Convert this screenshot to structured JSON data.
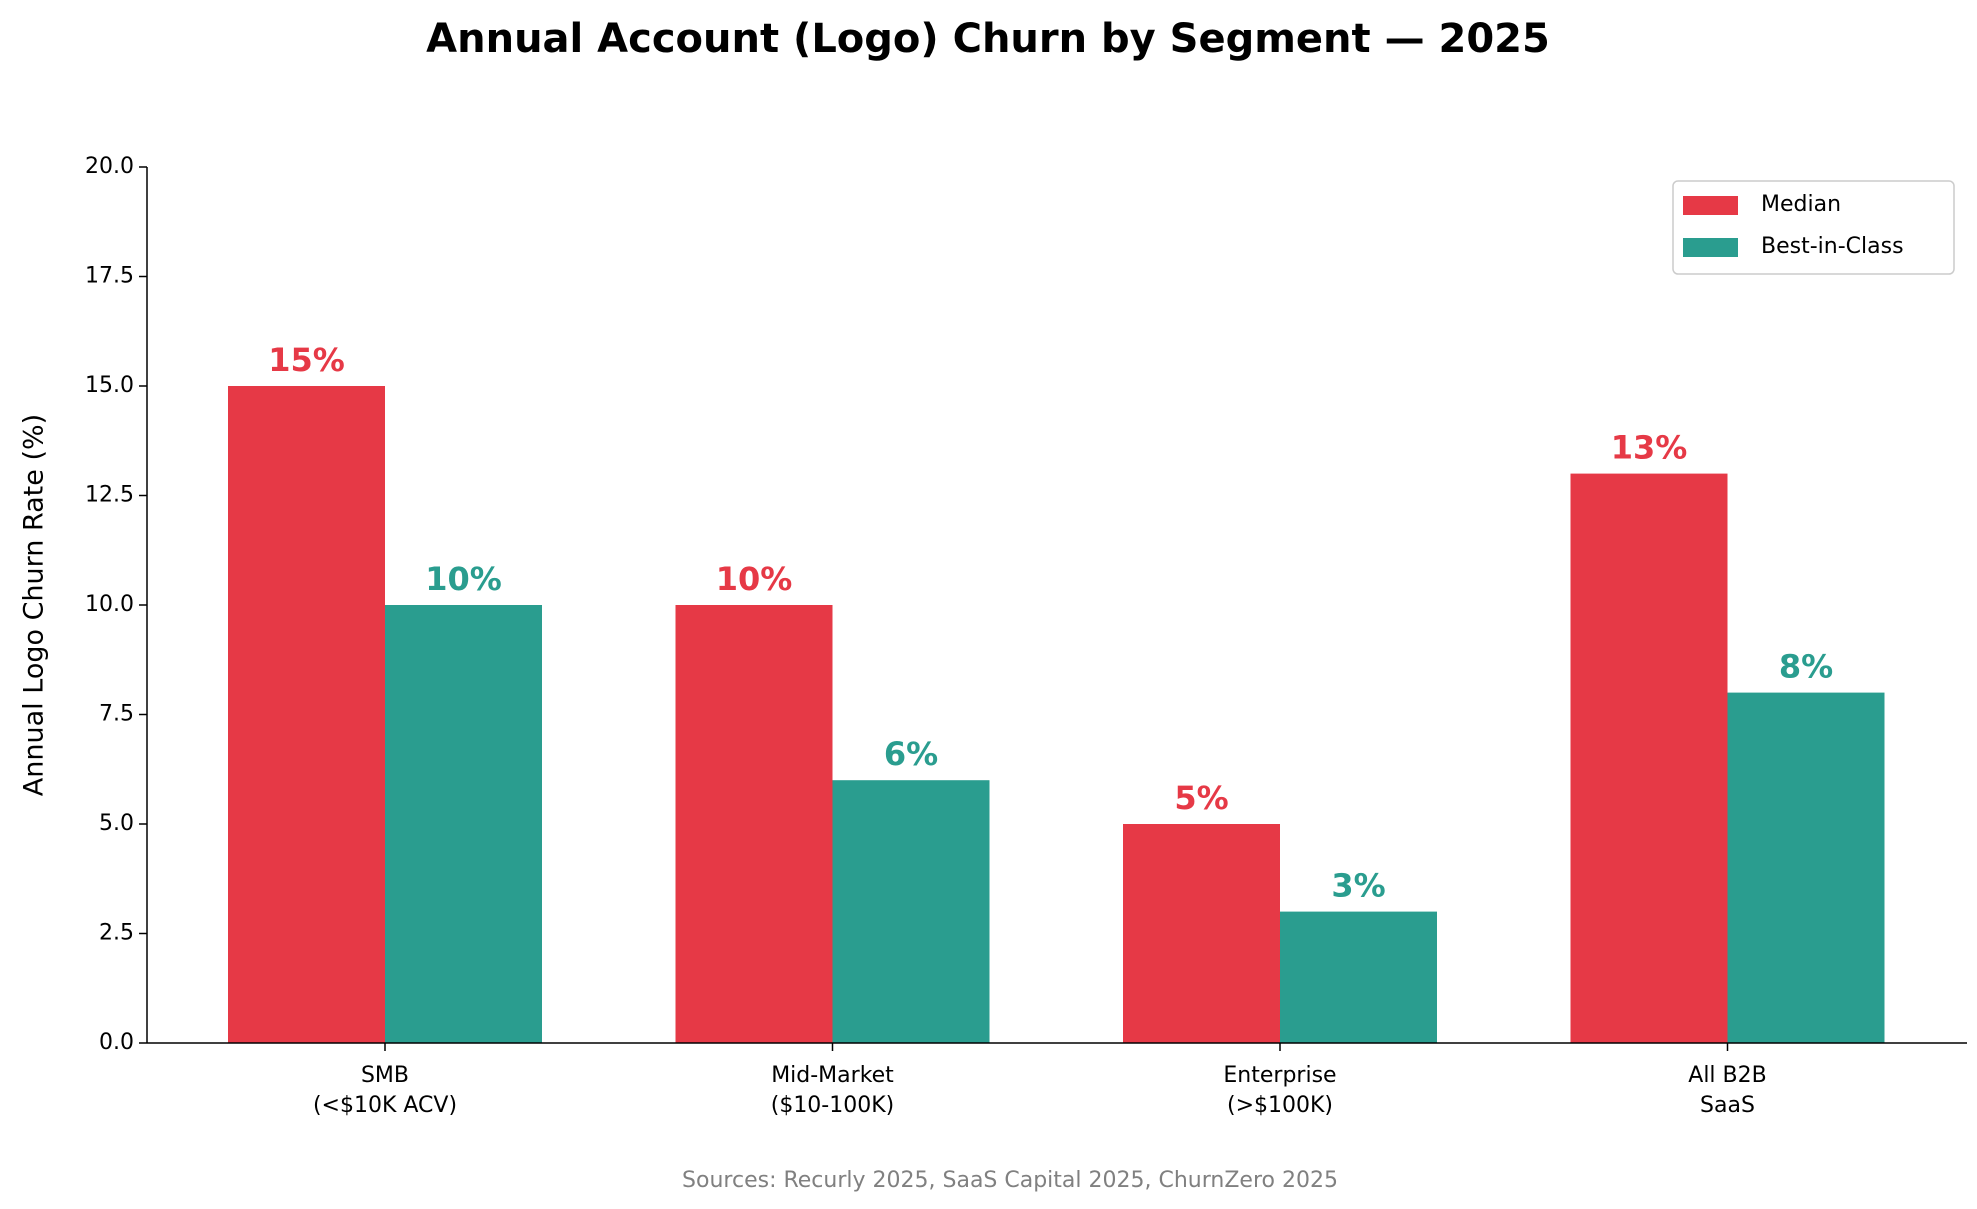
{
  "chart_data": {
    "type": "bar",
    "title": "Annual Account (Logo) Churn by Segment — 2025",
    "ylabel": "Annual Logo Churn Rate (%)",
    "footnote": "Sources: Recurly 2025, SaaS Capital 2025, ChurnZero 2025",
    "categories": [
      [
        "SMB",
        "(<$10K ACV)"
      ],
      [
        "Mid-Market",
        "($10-100K)"
      ],
      [
        "Enterprise",
        "(>$100K)"
      ],
      [
        "All B2B",
        "SaaS"
      ]
    ],
    "series": [
      {
        "name": "Median",
        "color": "#e63946",
        "values": [
          15,
          10,
          5,
          13
        ],
        "value_labels": [
          "15%",
          "10%",
          "5%",
          "13%"
        ]
      },
      {
        "name": "Best-in-Class",
        "color": "#2a9d8f",
        "values": [
          10,
          6,
          3,
          8
        ],
        "value_labels": [
          "10%",
          "6%",
          "3%",
          "8%"
        ]
      }
    ],
    "ylim": [
      0,
      20
    ],
    "yticks": [
      {
        "value": 0,
        "label": "0.0"
      },
      {
        "value": 2.5,
        "label": "2.5"
      },
      {
        "value": 5,
        "label": "5.0"
      },
      {
        "value": 7.5,
        "label": "7.5"
      },
      {
        "value": 10,
        "label": "10.0"
      },
      {
        "value": 12.5,
        "label": "12.5"
      },
      {
        "value": 15,
        "label": "15.0"
      },
      {
        "value": 17.5,
        "label": "17.5"
      },
      {
        "value": 20,
        "label": "20.0"
      }
    ],
    "legend": "upper right",
    "grid": false
  }
}
